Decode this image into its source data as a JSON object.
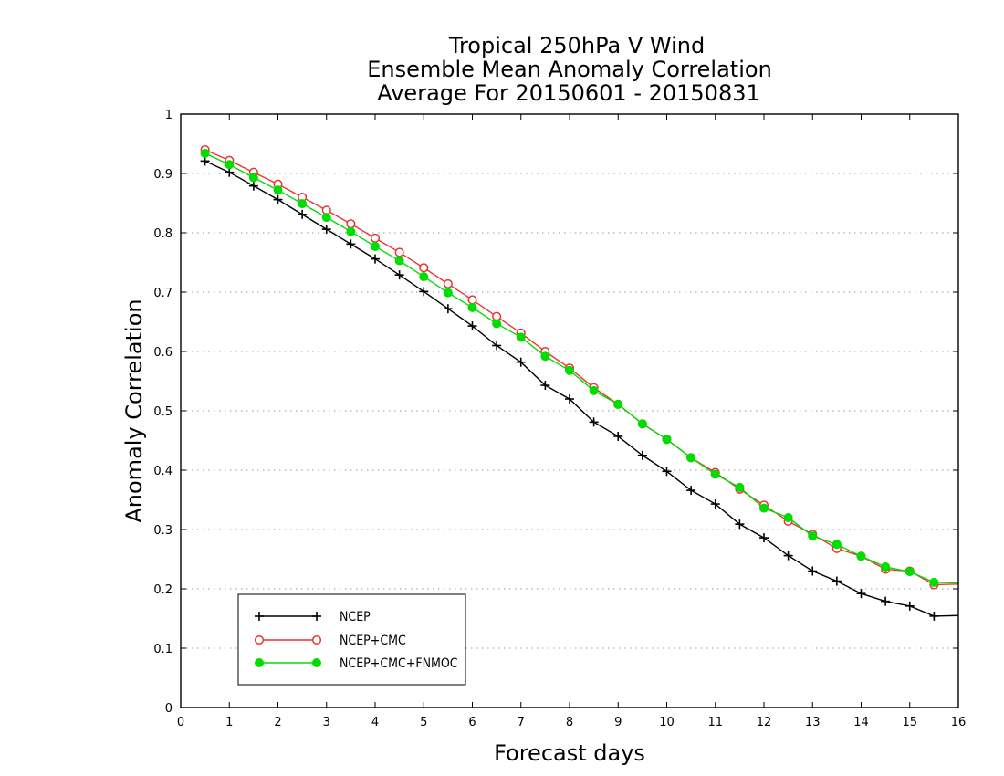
{
  "chart_data": {
    "type": "line",
    "title": [
      "Tropical 250hPa V Wind",
      "Ensemble Mean Anomaly Correlation",
      "Average For 20150601 - 20150831"
    ],
    "xlabel": "Forecast days",
    "ylabel": "Anomaly Correlation",
    "xlim": [
      0,
      16
    ],
    "ylim": [
      0,
      1
    ],
    "xticks": [
      "0",
      "1",
      "2",
      "3",
      "4",
      "5",
      "6",
      "7",
      "8",
      "9",
      "10",
      "11",
      "12",
      "13",
      "14",
      "15",
      "16"
    ],
    "yticks": [
      "0",
      "0.1",
      "0.2",
      "0.3",
      "0.4",
      "0.5",
      "0.6",
      "0.7",
      "0.8",
      "0.9",
      "1"
    ],
    "grid": "horizontal dotted",
    "legend_position": "bottom-left",
    "x": [
      0.5,
      1,
      1.5,
      2,
      2.5,
      3,
      3.5,
      4,
      4.5,
      5,
      5.5,
      6,
      6.5,
      7,
      7.5,
      8,
      8.5,
      9,
      9.5,
      10,
      10.5,
      11,
      11.5,
      12,
      12.5,
      13,
      13.5,
      14,
      14.5,
      15,
      15.5,
      16
    ],
    "series": [
      {
        "name": "NCEP",
        "color": "#000000",
        "marker": "plus",
        "values": [
          0.921,
          0.902,
          0.879,
          0.856,
          0.831,
          0.806,
          0.781,
          0.756,
          0.729,
          0.701,
          0.672,
          0.643,
          0.61,
          0.582,
          0.543,
          0.52,
          0.481,
          0.457,
          0.425,
          0.398,
          0.366,
          0.343,
          0.309,
          0.286,
          0.256,
          0.23,
          0.213,
          0.192,
          0.179,
          0.171,
          0.154,
          0.155
        ]
      },
      {
        "name": "NCEP+CMC",
        "color": "#ee3333",
        "marker": "open-circle",
        "values": [
          0.94,
          0.922,
          0.902,
          0.882,
          0.86,
          0.838,
          0.815,
          0.791,
          0.767,
          0.741,
          0.714,
          0.687,
          0.659,
          0.631,
          0.6,
          0.572,
          0.539,
          0.511,
          0.478,
          0.452,
          0.421,
          0.396,
          0.368,
          0.341,
          0.314,
          0.292,
          0.268,
          0.255,
          0.233,
          0.23,
          0.207,
          0.208
        ]
      },
      {
        "name": "NCEP+CMC+FNMOC",
        "color": "#00dd00",
        "marker": "filled-circle",
        "values": [
          0.934,
          0.915,
          0.893,
          0.872,
          0.849,
          0.826,
          0.802,
          0.777,
          0.753,
          0.726,
          0.699,
          0.674,
          0.647,
          0.624,
          0.592,
          0.568,
          0.534,
          0.511,
          0.478,
          0.452,
          0.421,
          0.393,
          0.371,
          0.336,
          0.32,
          0.289,
          0.275,
          0.255,
          0.237,
          0.229,
          0.211,
          0.21
        ]
      }
    ]
  }
}
